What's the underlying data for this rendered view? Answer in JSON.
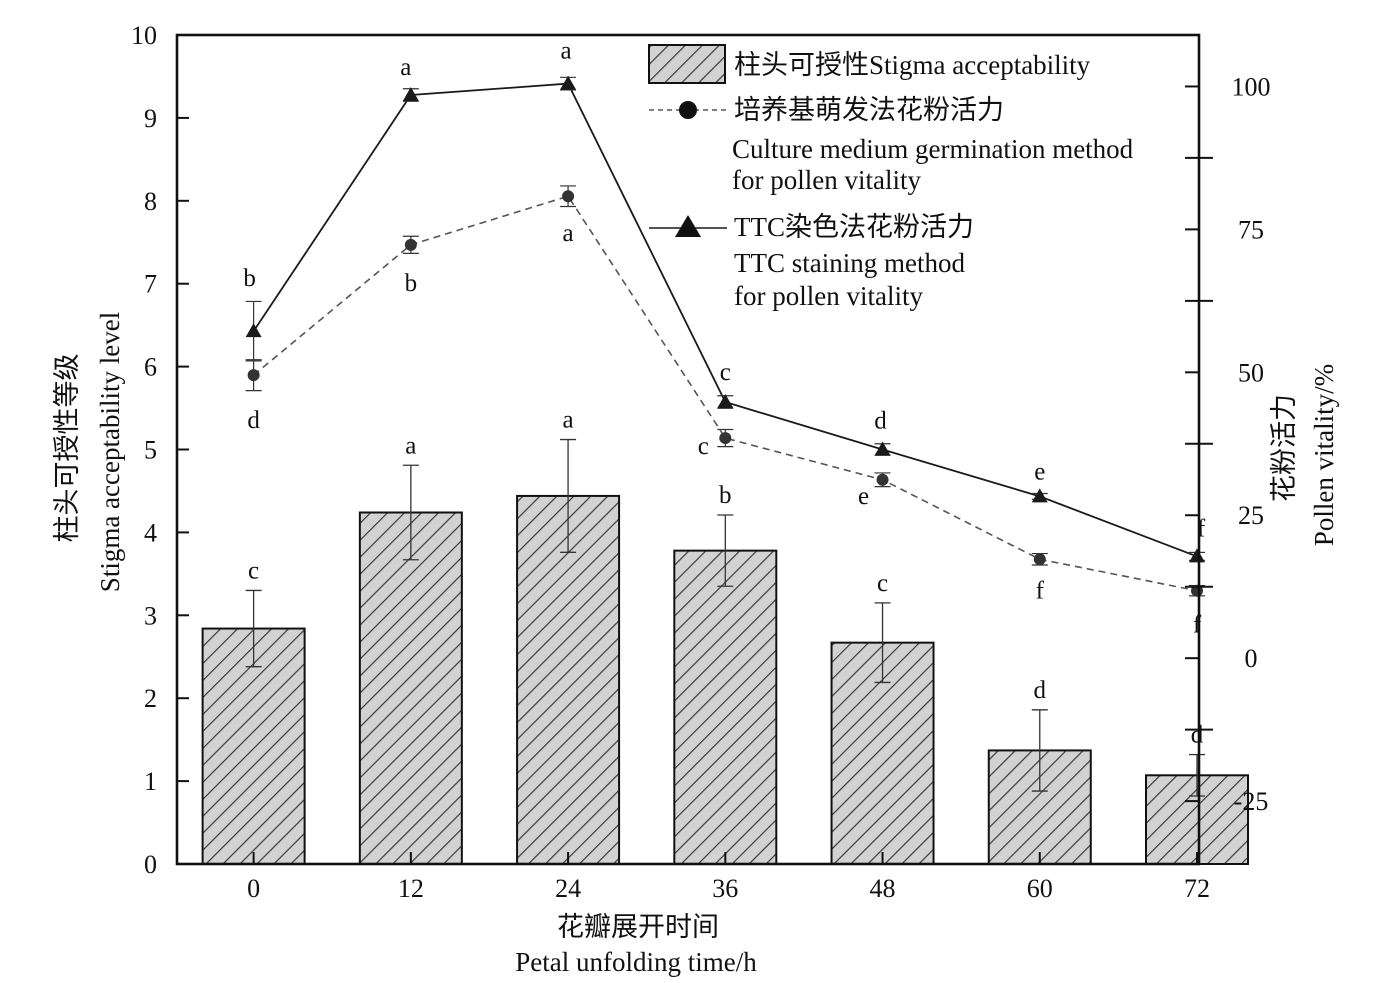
{
  "chart_data": {
    "type": "bar",
    "x": [
      "0",
      "12",
      "24",
      "36",
      "48",
      "60",
      "72"
    ],
    "xlabel_cn": "花瓣展开时间",
    "xlabel_en": "Petal unfolding time/h",
    "ylabel_left_cn": "柱头可授性等级",
    "ylabel_left_en": "Stigma acceptability level",
    "ylabel_right_cn": "花粉活力",
    "ylabel_right_en": "Pollen vitality/%",
    "ylim_left": [
      0,
      10
    ],
    "yticks_left": [
      "0",
      "1",
      "2",
      "3",
      "4",
      "5",
      "6",
      "7",
      "8",
      "9",
      "10"
    ],
    "ylim_right": [
      -36,
      109
    ],
    "yticks_right": [
      "-25",
      "0",
      "25",
      "50",
      "75",
      "100"
    ],
    "grid": false,
    "legend_position": "top-right",
    "legend": {
      "bar_cn": "柱头可授性",
      "bar_en": "Stigma acceptability",
      "culture_cn": "培养基萌发法花粉活力",
      "culture_en_line1": "Culture medium germination method",
      "culture_en_line2": "for pollen vitality",
      "ttc_cn": "TTC染色法花粉活力",
      "ttc_en_line1": "TTC staining method",
      "ttc_en_line2": " for pollen vitality"
    },
    "series": [
      {
        "key": "stigma",
        "type": "bar",
        "axis": "left",
        "values": [
          2.84,
          4.24,
          4.44,
          3.78,
          2.67,
          1.37,
          1.07
        ],
        "errors": [
          0.46,
          0.57,
          0.68,
          0.43,
          0.48,
          0.49,
          0.25
        ],
        "labels": [
          "c",
          "a",
          "a",
          "b",
          "c",
          "d",
          "d"
        ]
      },
      {
        "key": "culture",
        "type": "line",
        "style": "dashed",
        "marker": "circle",
        "axis": "right",
        "values": [
          49.5,
          72.3,
          80.8,
          38.5,
          31.2,
          17.3,
          11.8
        ],
        "errors": [
          2.7,
          1.5,
          1.8,
          1.5,
          1.2,
          1.0,
          0.9
        ],
        "labels": [
          "d",
          "b",
          "a",
          "c",
          "e",
          "f",
          "f"
        ]
      },
      {
        "key": "ttc",
        "type": "line",
        "style": "solid",
        "marker": "triangle",
        "axis": "right",
        "values": [
          57.2,
          98.5,
          100.5,
          44.8,
          36.5,
          28.3,
          17.8
        ],
        "errors": [
          5.2,
          1.1,
          1.1,
          1.1,
          1.0,
          0.5,
          0.7
        ],
        "labels": [
          "b",
          "a",
          "a",
          "c",
          "d",
          "e",
          "f"
        ]
      }
    ]
  },
  "colors": {
    "axis": "#111111",
    "bar_fill": "#d2d2d2",
    "bar_hatch": "#3a3a3a",
    "culture_line": "#555555",
    "culture_marker": "#333333",
    "ttc_line": "#1a1a1a"
  }
}
